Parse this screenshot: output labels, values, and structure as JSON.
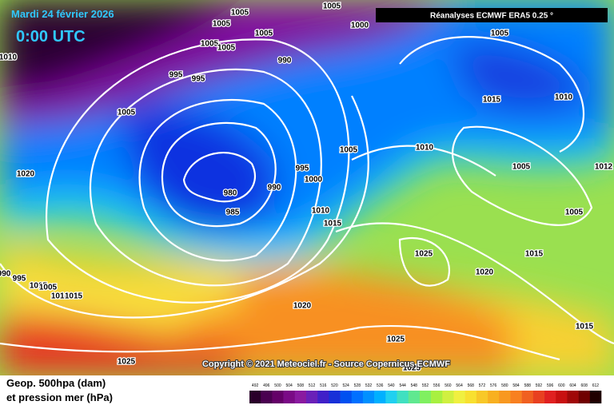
{
  "header": {
    "date": "Mardi 24 février 2026",
    "time": "0:00 UTC",
    "source": "Réanalyses ECMWF ERA5 0.25 °"
  },
  "copyright": "Copyright © 2021 Meteociel.fr - Source Copernicus ECMWF",
  "legend": {
    "title": "Geop. 500hpa (dam)",
    "subtitle": "et pression mer (hPa)",
    "ticks": [
      492,
      496,
      500,
      504,
      508,
      512,
      516,
      520,
      524,
      528,
      532,
      536,
      540,
      544,
      548,
      552,
      556,
      560,
      564,
      568,
      572,
      576,
      580,
      584,
      588,
      592,
      596,
      600,
      604,
      608,
      612
    ],
    "colors": [
      "#2a002a",
      "#4a0050",
      "#640068",
      "#7a0a86",
      "#8a1aa0",
      "#6a20b8",
      "#4020c8",
      "#1830d8",
      "#0050f0",
      "#0070ff",
      "#0090ff",
      "#00b0ff",
      "#20d0f0",
      "#40e0c0",
      "#60e890",
      "#80f060",
      "#a8f040",
      "#d0f040",
      "#f0f040",
      "#f8e030",
      "#f8c828",
      "#f8b020",
      "#f89820",
      "#f88020",
      "#f06020",
      "#e84020",
      "#e02020",
      "#c81010",
      "#a00808",
      "#700000",
      "#200000"
    ]
  },
  "isobars": [
    1005,
    1005,
    1005,
    1005,
    1000,
    1005,
    1010,
    1005,
    1005,
    990,
    995,
    995,
    1015,
    1010,
    1005,
    1010,
    1005,
    995,
    1005,
    1020,
    1000,
    990,
    980,
    1010,
    985,
    1005,
    1015,
    1025,
    1015,
    1020,
    990,
    995,
    1005,
    1005,
    1010,
    1015,
    1020,
    1015,
    1025,
    1025,
    1025,
    1012
  ]
}
